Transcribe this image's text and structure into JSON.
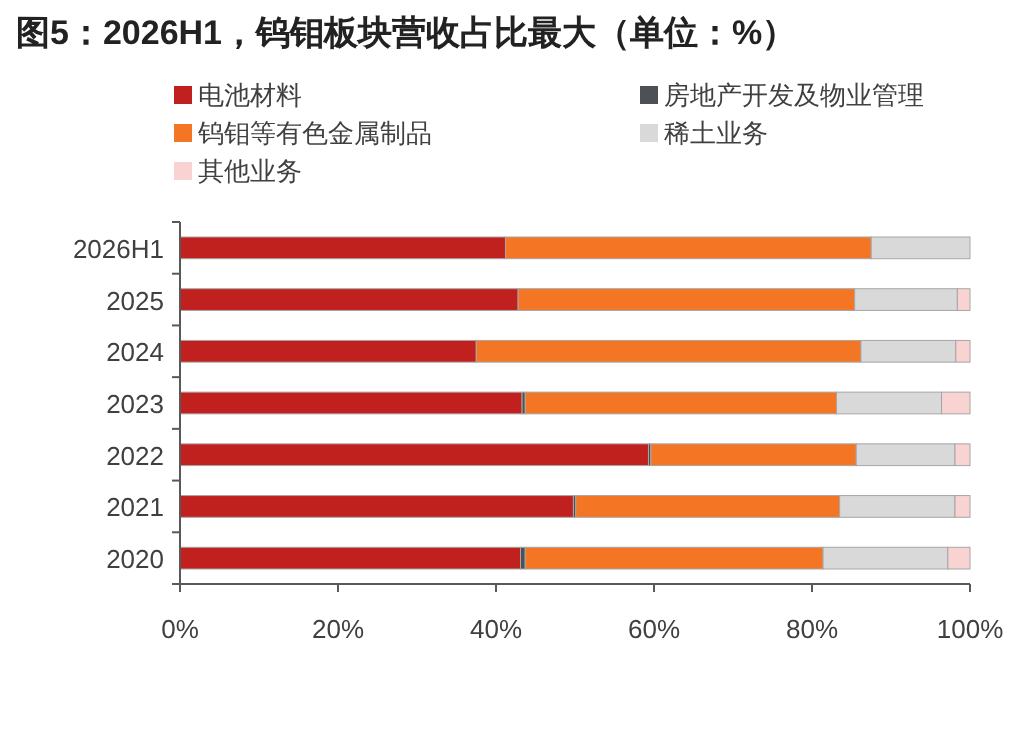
{
  "chart_data": {
    "type": "bar",
    "orientation": "horizontal",
    "stacked": true,
    "title": "图5：2026H1，钨钼板块营收占比最大（单位：%）",
    "categories": [
      "2026H1",
      "2025",
      "2024",
      "2023",
      "2022",
      "2021",
      "2020"
    ],
    "series": [
      {
        "name": "电池材料",
        "color": "#c0201e",
        "values": [
          41.2,
          42.8,
          37.5,
          43.3,
          59.3,
          49.8,
          43.1
        ]
      },
      {
        "name": "房地产开发及物业管理",
        "color": "#4d5156",
        "values": [
          0,
          0,
          0,
          0.4,
          0.3,
          0.3,
          0.6
        ]
      },
      {
        "name": "钨钼等有色金属制品",
        "color": "#f47624",
        "values": [
          46.3,
          42.6,
          48.7,
          39.4,
          26.0,
          33.4,
          37.7
        ]
      },
      {
        "name": "稀土业务",
        "color": "#d9d9d9",
        "values": [
          12.5,
          13.0,
          12.0,
          13.3,
          12.5,
          14.6,
          15.8
        ]
      },
      {
        "name": "其他业务",
        "color": "#f9d3d2",
        "values": [
          0,
          1.6,
          1.8,
          3.6,
          1.9,
          1.9,
          2.8
        ]
      }
    ],
    "xlim": [
      0,
      100
    ],
    "xticks": [
      {
        "value": 0,
        "label": "0%"
      },
      {
        "value": 20,
        "label": "20%"
      },
      {
        "value": 40,
        "label": "40%"
      },
      {
        "value": 60,
        "label": "60%"
      },
      {
        "value": 80,
        "label": "80%"
      },
      {
        "value": 100,
        "label": "100%"
      }
    ],
    "legend": "top",
    "grid": false
  }
}
